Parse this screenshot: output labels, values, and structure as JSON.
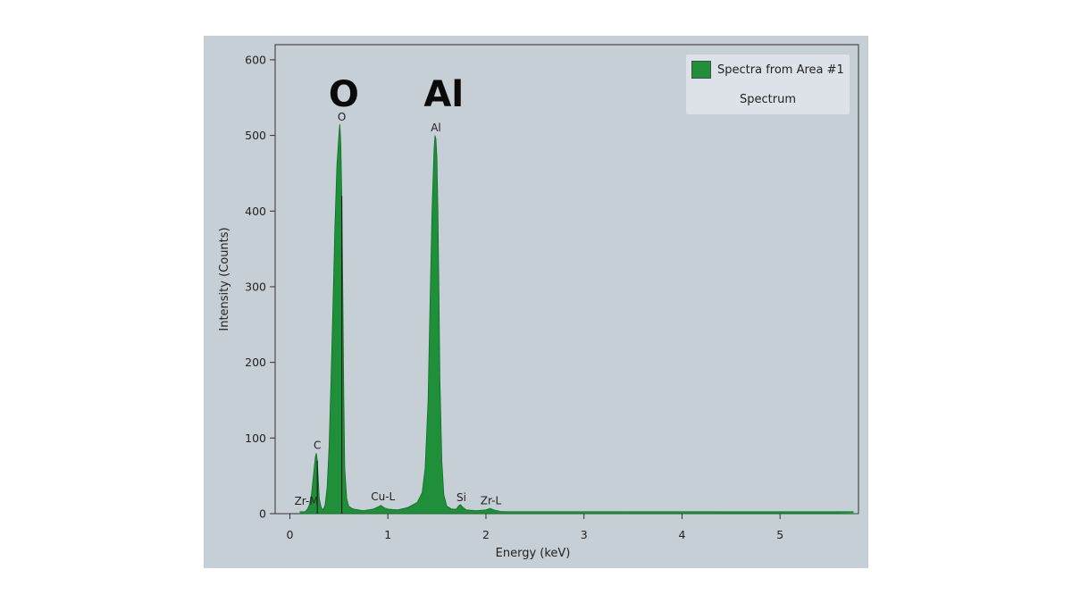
{
  "colors": {
    "panel_bg": "#c6ced6",
    "spectrum_fill": "#1f8f3a",
    "spectrum_stroke": "#0f6e27",
    "axis": "#333333"
  },
  "chart_data": {
    "type": "area",
    "title": "",
    "xlabel": "Energy (keV)",
    "ylabel": "Intensity (Counts)",
    "xlim": [
      -0.15,
      5.8
    ],
    "ylim": [
      0,
      620
    ],
    "x_ticks": [
      0,
      1,
      2,
      3,
      4,
      5
    ],
    "y_ticks": [
      0,
      100,
      200,
      300,
      400,
      500,
      600
    ],
    "grid": false,
    "legend_position": "top-right",
    "series": [
      {
        "name": "Spectra from Area #1",
        "x": [
          0.1,
          0.15,
          0.18,
          0.2,
          0.22,
          0.24,
          0.26,
          0.27,
          0.28,
          0.29,
          0.3,
          0.32,
          0.34,
          0.36,
          0.38,
          0.4,
          0.42,
          0.44,
          0.46,
          0.48,
          0.5,
          0.51,
          0.52,
          0.53,
          0.54,
          0.55,
          0.56,
          0.58,
          0.6,
          0.62,
          0.65,
          0.7,
          0.75,
          0.8,
          0.85,
          0.9,
          0.93,
          0.96,
          1.0,
          1.1,
          1.2,
          1.3,
          1.35,
          1.38,
          1.41,
          1.43,
          1.45,
          1.47,
          1.48,
          1.49,
          1.5,
          1.51,
          1.52,
          1.53,
          1.55,
          1.57,
          1.6,
          1.65,
          1.7,
          1.72,
          1.74,
          1.76,
          1.8,
          1.9,
          2.0,
          2.04,
          2.08,
          2.15,
          2.3,
          2.5,
          3.0,
          3.5,
          4.0,
          4.5,
          5.0,
          5.5,
          5.8
        ],
        "y": [
          0,
          2,
          6,
          12,
          25,
          50,
          75,
          80,
          70,
          45,
          20,
          8,
          5,
          12,
          35,
          90,
          180,
          280,
          380,
          460,
          500,
          515,
          490,
          420,
          300,
          160,
          60,
          20,
          10,
          8,
          6,
          5,
          4,
          5,
          6,
          9,
          11,
          8,
          6,
          5,
          8,
          15,
          28,
          60,
          150,
          280,
          400,
          480,
          500,
          495,
          470,
          400,
          300,
          180,
          70,
          25,
          10,
          6,
          6,
          10,
          12,
          9,
          5,
          4,
          5,
          7,
          5,
          3,
          2,
          2,
          2,
          1.5,
          1.5,
          1,
          1,
          1,
          0
        ]
      }
    ],
    "peak_labels": [
      {
        "text": "Zr-M",
        "x": 0.17,
        "y": 8
      },
      {
        "text": "C",
        "x": 0.28,
        "y": 82
      },
      {
        "text": "O",
        "x": 0.53,
        "y": 516
      },
      {
        "text": "Cu-L",
        "x": 0.95,
        "y": 14
      },
      {
        "text": "Al",
        "x": 1.49,
        "y": 502
      },
      {
        "text": "Si",
        "x": 1.75,
        "y": 13
      },
      {
        "text": "Zr-L",
        "x": 2.05,
        "y": 9
      }
    ],
    "marker_lines": [
      0.28,
      0.53
    ],
    "big_labels": [
      {
        "text": "O",
        "x": 0.55,
        "y": 555
      },
      {
        "text": "Al",
        "x": 1.57,
        "y": 555
      }
    ],
    "legend_subtitle": "Spectrum"
  }
}
